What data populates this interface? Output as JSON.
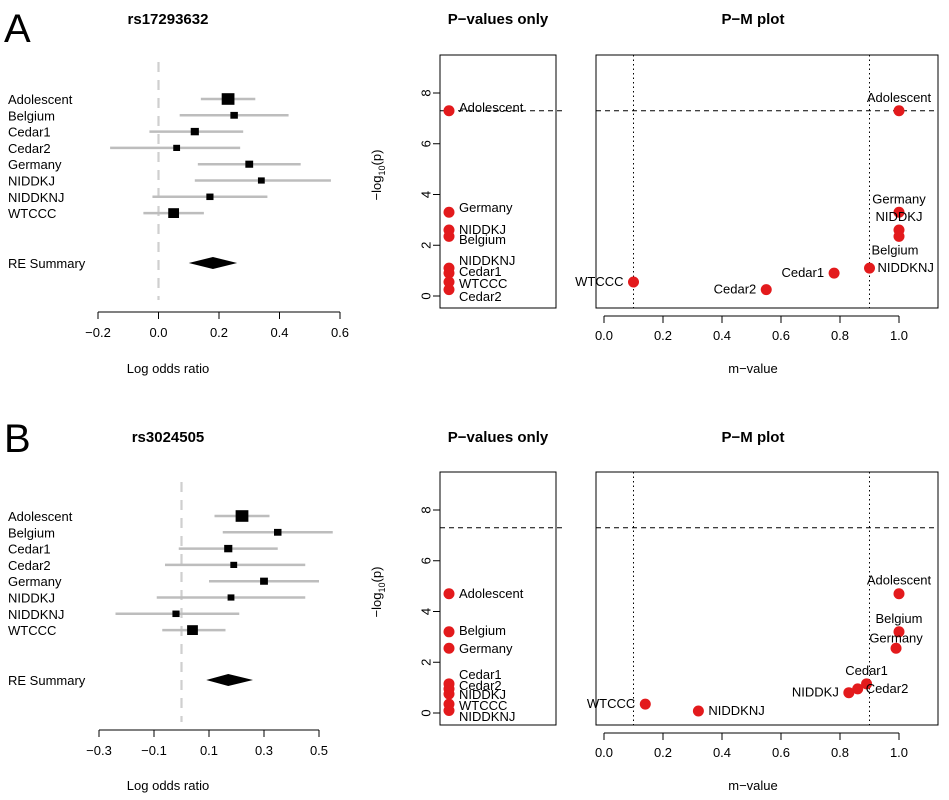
{
  "chart_data": [
    {
      "type": "forest",
      "panel": "A",
      "title": "rs17293632",
      "xlabel": "Log odds ratio",
      "xlim": [
        -0.2,
        0.6
      ],
      "xticks": [
        "−0.2",
        "0.0",
        "0.2",
        "0.4",
        "0.6"
      ],
      "studies": [
        {
          "label": "Adolescent",
          "estimate": 0.23,
          "lo": 0.14,
          "hi": 0.32,
          "weight": 1.6
        },
        {
          "label": "Belgium",
          "estimate": 0.25,
          "lo": 0.07,
          "hi": 0.43,
          "weight": 0.8
        },
        {
          "label": "Cedar1",
          "estimate": 0.12,
          "lo": -0.03,
          "hi": 0.28,
          "weight": 0.9
        },
        {
          "label": "Cedar2",
          "estimate": 0.06,
          "lo": -0.16,
          "hi": 0.27,
          "weight": 0.7
        },
        {
          "label": "Germany",
          "estimate": 0.3,
          "lo": 0.13,
          "hi": 0.47,
          "weight": 0.85
        },
        {
          "label": "NIDDKJ",
          "estimate": 0.34,
          "lo": 0.12,
          "hi": 0.57,
          "weight": 0.7
        },
        {
          "label": "NIDDKNJ",
          "estimate": 0.17,
          "lo": -0.02,
          "hi": 0.36,
          "weight": 0.75
        },
        {
          "label": "WTCCC",
          "estimate": 0.05,
          "lo": -0.05,
          "hi": 0.15,
          "weight": 1.3
        }
      ],
      "summary": {
        "label": "RE Summary",
        "estimate": 0.18,
        "lo": 0.1,
        "hi": 0.26
      }
    },
    {
      "type": "scatter",
      "panel": "A",
      "title": "P−values only",
      "ylabel": "−log10(p)",
      "ylim": [
        0,
        9
      ],
      "yticks": [
        "0",
        "2",
        "4",
        "6",
        "8"
      ],
      "threshold": 7.3,
      "points": [
        {
          "label": "Adolescent",
          "y": 7.3
        },
        {
          "label": "Germany",
          "y": 3.3
        },
        {
          "label": "NIDDKJ",
          "y": 2.6
        },
        {
          "label": "Belgium",
          "y": 2.35
        },
        {
          "label": "NIDDKNJ",
          "y": 1.1
        },
        {
          "label": "Cedar1",
          "y": 0.9
        },
        {
          "label": "WTCCC",
          "y": 0.55
        },
        {
          "label": "Cedar2",
          "y": 0.25
        }
      ]
    },
    {
      "type": "scatter",
      "panel": "A",
      "title": "P−M plot",
      "xlabel": "m−value",
      "xlim": [
        0,
        1
      ],
      "xticks": [
        "0.0",
        "0.2",
        "0.4",
        "0.6",
        "0.8",
        "1.0"
      ],
      "ylim": [
        0,
        9
      ],
      "threshold": 7.3,
      "vlines": [
        0.1,
        0.9
      ],
      "points": [
        {
          "label": "Adolescent",
          "x": 1.0,
          "y": 7.3
        },
        {
          "label": "Germany",
          "x": 1.0,
          "y": 3.3
        },
        {
          "label": "NIDDKJ",
          "x": 1.0,
          "y": 2.6
        },
        {
          "label": "Belgium",
          "x": 1.0,
          "y": 2.35
        },
        {
          "label": "NIDDKNJ",
          "x": 0.9,
          "y": 1.1
        },
        {
          "label": "Cedar1",
          "x": 0.78,
          "y": 0.9
        },
        {
          "label": "WTCCC",
          "x": 0.1,
          "y": 0.55
        },
        {
          "label": "Cedar2",
          "x": 0.55,
          "y": 0.25
        }
      ]
    },
    {
      "type": "forest",
      "panel": "B",
      "title": "rs3024505",
      "xlabel": "Log odds ratio",
      "xlim": [
        -0.3,
        0.5
      ],
      "xticks": [
        "−0.3",
        "−0.1",
        "0.1",
        "0.3",
        "0.5"
      ],
      "studies": [
        {
          "label": "Adolescent",
          "estimate": 0.22,
          "lo": 0.12,
          "hi": 0.32,
          "weight": 1.6
        },
        {
          "label": "Belgium",
          "estimate": 0.35,
          "lo": 0.15,
          "hi": 0.55,
          "weight": 0.8
        },
        {
          "label": "Cedar1",
          "estimate": 0.17,
          "lo": -0.01,
          "hi": 0.35,
          "weight": 0.9
        },
        {
          "label": "Cedar2",
          "estimate": 0.19,
          "lo": -0.06,
          "hi": 0.45,
          "weight": 0.7
        },
        {
          "label": "Germany",
          "estimate": 0.3,
          "lo": 0.1,
          "hi": 0.5,
          "weight": 0.85
        },
        {
          "label": "NIDDKJ",
          "estimate": 0.18,
          "lo": -0.09,
          "hi": 0.45,
          "weight": 0.7
        },
        {
          "label": "NIDDKNJ",
          "estimate": -0.02,
          "lo": -0.24,
          "hi": 0.21,
          "weight": 0.75
        },
        {
          "label": "WTCCC",
          "estimate": 0.04,
          "lo": -0.07,
          "hi": 0.16,
          "weight": 1.3
        }
      ],
      "summary": {
        "label": "RE Summary",
        "estimate": 0.17,
        "lo": 0.09,
        "hi": 0.26
      }
    },
    {
      "type": "scatter",
      "panel": "B",
      "title": "P−values only",
      "ylabel": "−log10(p)",
      "ylim": [
        0,
        9
      ],
      "yticks": [
        "0",
        "2",
        "4",
        "6",
        "8"
      ],
      "threshold": 7.3,
      "points": [
        {
          "label": "Adolescent",
          "y": 4.7
        },
        {
          "label": "Belgium",
          "y": 3.2
        },
        {
          "label": "Germany",
          "y": 2.55
        },
        {
          "label": "Cedar1",
          "y": 1.15
        },
        {
          "label": "Cedar2",
          "y": 0.95
        },
        {
          "label": "NIDDKJ",
          "y": 0.75
        },
        {
          "label": "WTCCC",
          "y": 0.35
        },
        {
          "label": "NIDDKNJ",
          "y": 0.1
        }
      ]
    },
    {
      "type": "scatter",
      "panel": "B",
      "title": "P−M plot",
      "xlabel": "m−value",
      "xlim": [
        0,
        1
      ],
      "xticks": [
        "0.0",
        "0.2",
        "0.4",
        "0.6",
        "0.8",
        "1.0"
      ],
      "ylim": [
        0,
        9
      ],
      "threshold": 7.3,
      "vlines": [
        0.1,
        0.9
      ],
      "points": [
        {
          "label": "Adolescent",
          "x": 1.0,
          "y": 4.7
        },
        {
          "label": "Belgium",
          "x": 1.0,
          "y": 3.2
        },
        {
          "label": "Germany",
          "x": 0.99,
          "y": 2.55
        },
        {
          "label": "Cedar1",
          "x": 0.89,
          "y": 1.15
        },
        {
          "label": "Cedar2",
          "x": 0.86,
          "y": 0.95
        },
        {
          "label": "NIDDKJ",
          "x": 0.83,
          "y": 0.8
        },
        {
          "label": "WTCCC",
          "x": 0.14,
          "y": 0.35
        },
        {
          "label": "NIDDKNJ",
          "x": 0.32,
          "y": 0.08
        }
      ]
    }
  ],
  "panel_letters": [
    "A",
    "B"
  ]
}
